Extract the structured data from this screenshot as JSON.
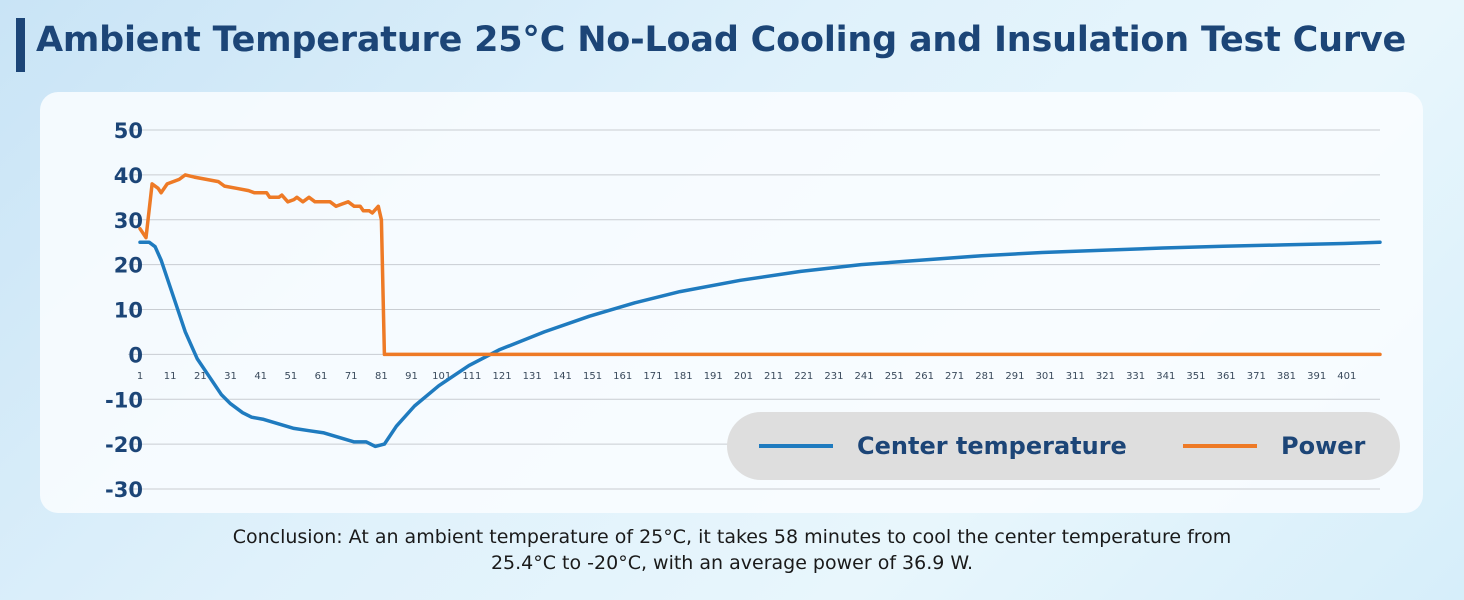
{
  "title": "Ambient Temperature 25°C No-Load Cooling and Insulation Test Curve",
  "conclusion": {
    "line1": "Conclusion: At an ambient temperature of 25°C, it takes 58 minutes to cool the center temperature from",
    "line2": "25.4°C to -20°C, with an average power of 36.9 W."
  },
  "legend": {
    "center": "Center temperature",
    "power": "Power"
  },
  "colors": {
    "center": "#1f7bbf",
    "power": "#ee7a26",
    "axis_text": "#1c4577",
    "grid": "#c9cdd2"
  },
  "chart_data": {
    "type": "line",
    "title": "Ambient Temperature 25°C No-Load Cooling and Insulation Test Curve",
    "xlabel": "",
    "ylabel": "",
    "ylim": [
      -30,
      50
    ],
    "yticks": [
      50,
      40,
      30,
      20,
      10,
      0,
      -10,
      -20,
      -30
    ],
    "xlim": [
      1,
      412
    ],
    "xticks": [
      1,
      11,
      21,
      31,
      41,
      51,
      61,
      71,
      81,
      91,
      101,
      111,
      121,
      131,
      141,
      151,
      161,
      171,
      181,
      191,
      201,
      211,
      221,
      231,
      241,
      251,
      261,
      271,
      281,
      291,
      301,
      311,
      321,
      331,
      341,
      351,
      361,
      371,
      381,
      391,
      401
    ],
    "grid": true,
    "legend_position": "bottom-right",
    "series": [
      {
        "name": "Center temperature",
        "points": [
          [
            1,
            25
          ],
          [
            4,
            25
          ],
          [
            6,
            24
          ],
          [
            8,
            21
          ],
          [
            12,
            13
          ],
          [
            16,
            5
          ],
          [
            20,
            -1
          ],
          [
            24,
            -5
          ],
          [
            28,
            -9
          ],
          [
            31,
            -11
          ],
          [
            35,
            -13
          ],
          [
            38,
            -14
          ],
          [
            42,
            -14.5
          ],
          [
            47,
            -15.5
          ],
          [
            52,
            -16.5
          ],
          [
            57,
            -17
          ],
          [
            62,
            -17.5
          ],
          [
            67,
            -18.5
          ],
          [
            72,
            -19.5
          ],
          [
            76,
            -19.5
          ],
          [
            79,
            -20.5
          ],
          [
            82,
            -20
          ],
          [
            86,
            -16
          ],
          [
            92,
            -11.5
          ],
          [
            100,
            -7
          ],
          [
            110,
            -2.5
          ],
          [
            120,
            1
          ],
          [
            135,
            5
          ],
          [
            150,
            8.5
          ],
          [
            165,
            11.5
          ],
          [
            180,
            14
          ],
          [
            200,
            16.5
          ],
          [
            220,
            18.5
          ],
          [
            240,
            20
          ],
          [
            260,
            21
          ],
          [
            280,
            22
          ],
          [
            300,
            22.7
          ],
          [
            320,
            23.2
          ],
          [
            340,
            23.7
          ],
          [
            360,
            24.1
          ],
          [
            380,
            24.4
          ],
          [
            400,
            24.7
          ],
          [
            412,
            25
          ]
        ]
      },
      {
        "name": "Power",
        "points": [
          [
            1,
            28
          ],
          [
            3,
            26
          ],
          [
            5,
            38
          ],
          [
            7,
            37
          ],
          [
            8,
            36
          ],
          [
            10,
            38
          ],
          [
            12,
            38.5
          ],
          [
            14,
            39
          ],
          [
            16,
            40
          ],
          [
            19,
            39.5
          ],
          [
            23,
            39
          ],
          [
            27,
            38.5
          ],
          [
            29,
            37.5
          ],
          [
            33,
            37
          ],
          [
            37,
            36.5
          ],
          [
            39,
            36
          ],
          [
            43,
            36
          ],
          [
            44,
            35
          ],
          [
            47,
            35
          ],
          [
            48,
            35.5
          ],
          [
            50,
            34
          ],
          [
            52,
            34.5
          ],
          [
            53,
            35
          ],
          [
            55,
            34
          ],
          [
            57,
            35
          ],
          [
            59,
            34
          ],
          [
            61,
            34
          ],
          [
            64,
            34
          ],
          [
            66,
            33
          ],
          [
            68,
            33.5
          ],
          [
            70,
            34
          ],
          [
            72,
            33
          ],
          [
            74,
            33
          ],
          [
            75,
            32
          ],
          [
            77,
            32
          ],
          [
            78,
            31.5
          ],
          [
            80,
            33
          ],
          [
            81,
            30
          ],
          [
            82,
            0
          ],
          [
            412,
            0
          ]
        ]
      }
    ]
  }
}
